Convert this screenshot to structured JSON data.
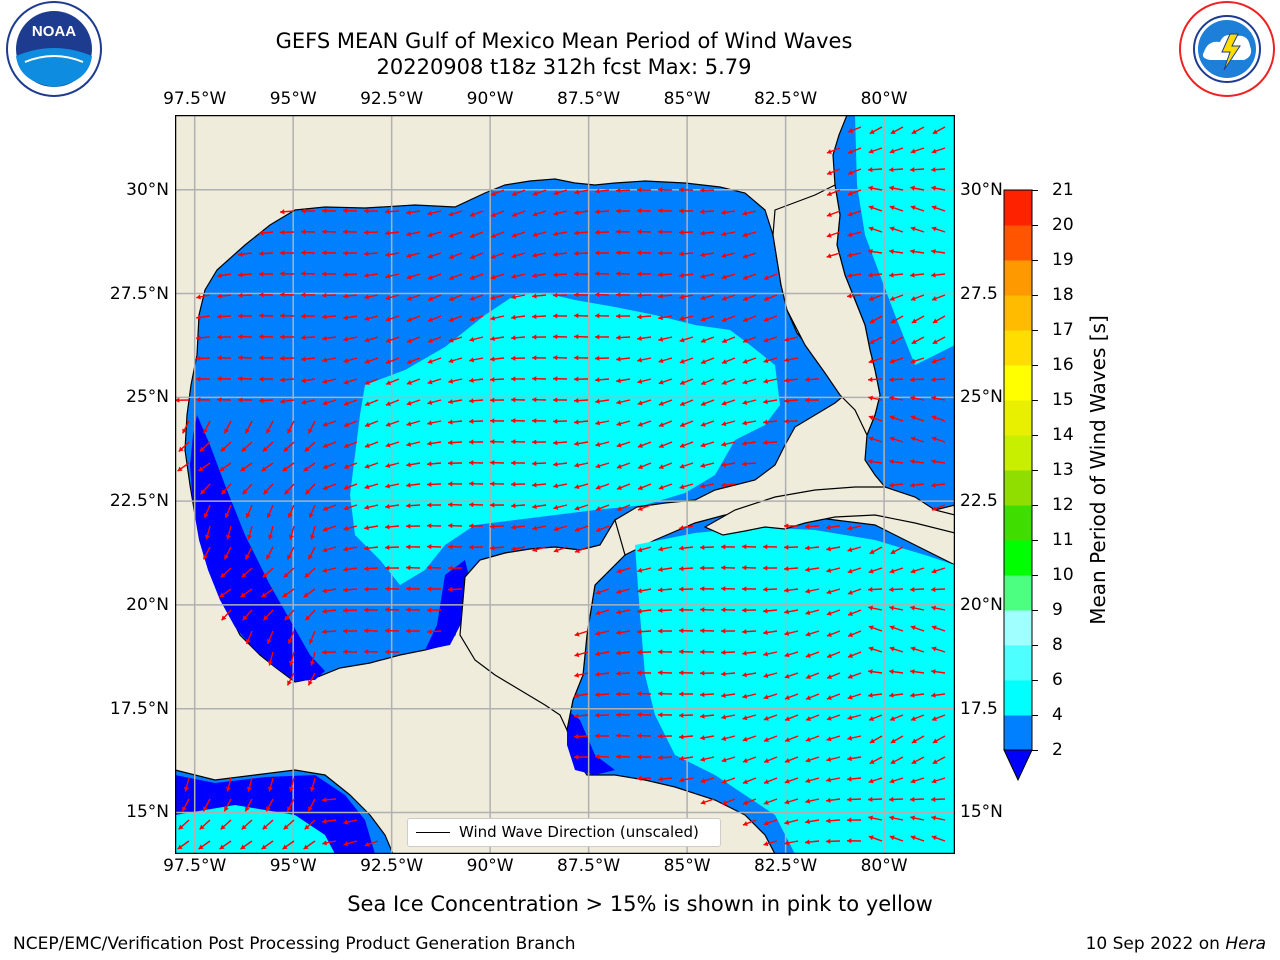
{
  "header": {
    "title_line1": "GEFS MEAN Gulf of Mexico Mean Period of Wind Waves",
    "title_line2": "20220908 t18z 312h fcst   Max: 5.79"
  },
  "logos": {
    "left": "noaa-logo",
    "left_ring_text": "NATIONAL OCEANIC AND ATMOSPHERIC ADMINISTRATION · U.S. DEPARTMENT OF COMMERCE",
    "left_center_text": "NOAA",
    "right": "nws-logo",
    "right_ring_text": "NATIONAL WEATHER SERVICE"
  },
  "map": {
    "lon_labels": [
      "97.5°W",
      "95°W",
      "92.5°W",
      "90°W",
      "87.5°W",
      "85°W",
      "82.5°W",
      "80°W"
    ],
    "lon_values": [
      -97.5,
      -95,
      -92.5,
      -90,
      -87.5,
      -85,
      -82.5,
      -80
    ],
    "lat_labels": [
      "30°N",
      "27.5°N",
      "25°N",
      "22.5°N",
      "20°N",
      "17.5°N",
      "15°N"
    ],
    "lat_values": [
      30,
      27.5,
      25,
      22.5,
      20,
      17.5,
      15
    ],
    "right_lat_labels": [
      "30°N",
      "27.5",
      "25°N",
      "22.5",
      "20°N",
      "17.5",
      "15°N"
    ],
    "lon_range": [
      -98,
      -78.2
    ],
    "lat_range": [
      14,
      31.8
    ],
    "legend_label": "Wind Wave Direction (unscaled)",
    "colors": {
      "land": "#efecdc",
      "coast": "#000000",
      "grid": "#b0b0b0",
      "arrow": "#ff0000",
      "band_2_4": "#0080ff",
      "band_4_6": "#00ffff",
      "band_below_2": "#0000ff"
    }
  },
  "colorbar": {
    "label": "Mean Period of Wind Waves [s]",
    "ticks": [
      "2",
      "4",
      "6",
      "8",
      "9",
      "10",
      "11",
      "12",
      "13",
      "14",
      "15",
      "16",
      "17",
      "18",
      "19",
      "20",
      "21"
    ],
    "colors": [
      "#0080ff",
      "#00ffff",
      "#4dffff",
      "#a0ffff",
      "#4dff80",
      "#00ff00",
      "#40dd00",
      "#90dd00",
      "#c8ee00",
      "#e8f000",
      "#ffff00",
      "#ffdd00",
      "#ffbb00",
      "#ff9900",
      "#ff5500",
      "#ff2200",
      "#ff0000"
    ],
    "extend_color": "#0000ff"
  },
  "note": "Sea Ice Concentration > 15% is shown in pink to yellow",
  "footer": {
    "left": "NCEP/EMC/Verification Post Processing Product Generation Branch",
    "right_prefix": "10 Sep 2022 on ",
    "right_host": "Hera"
  }
}
